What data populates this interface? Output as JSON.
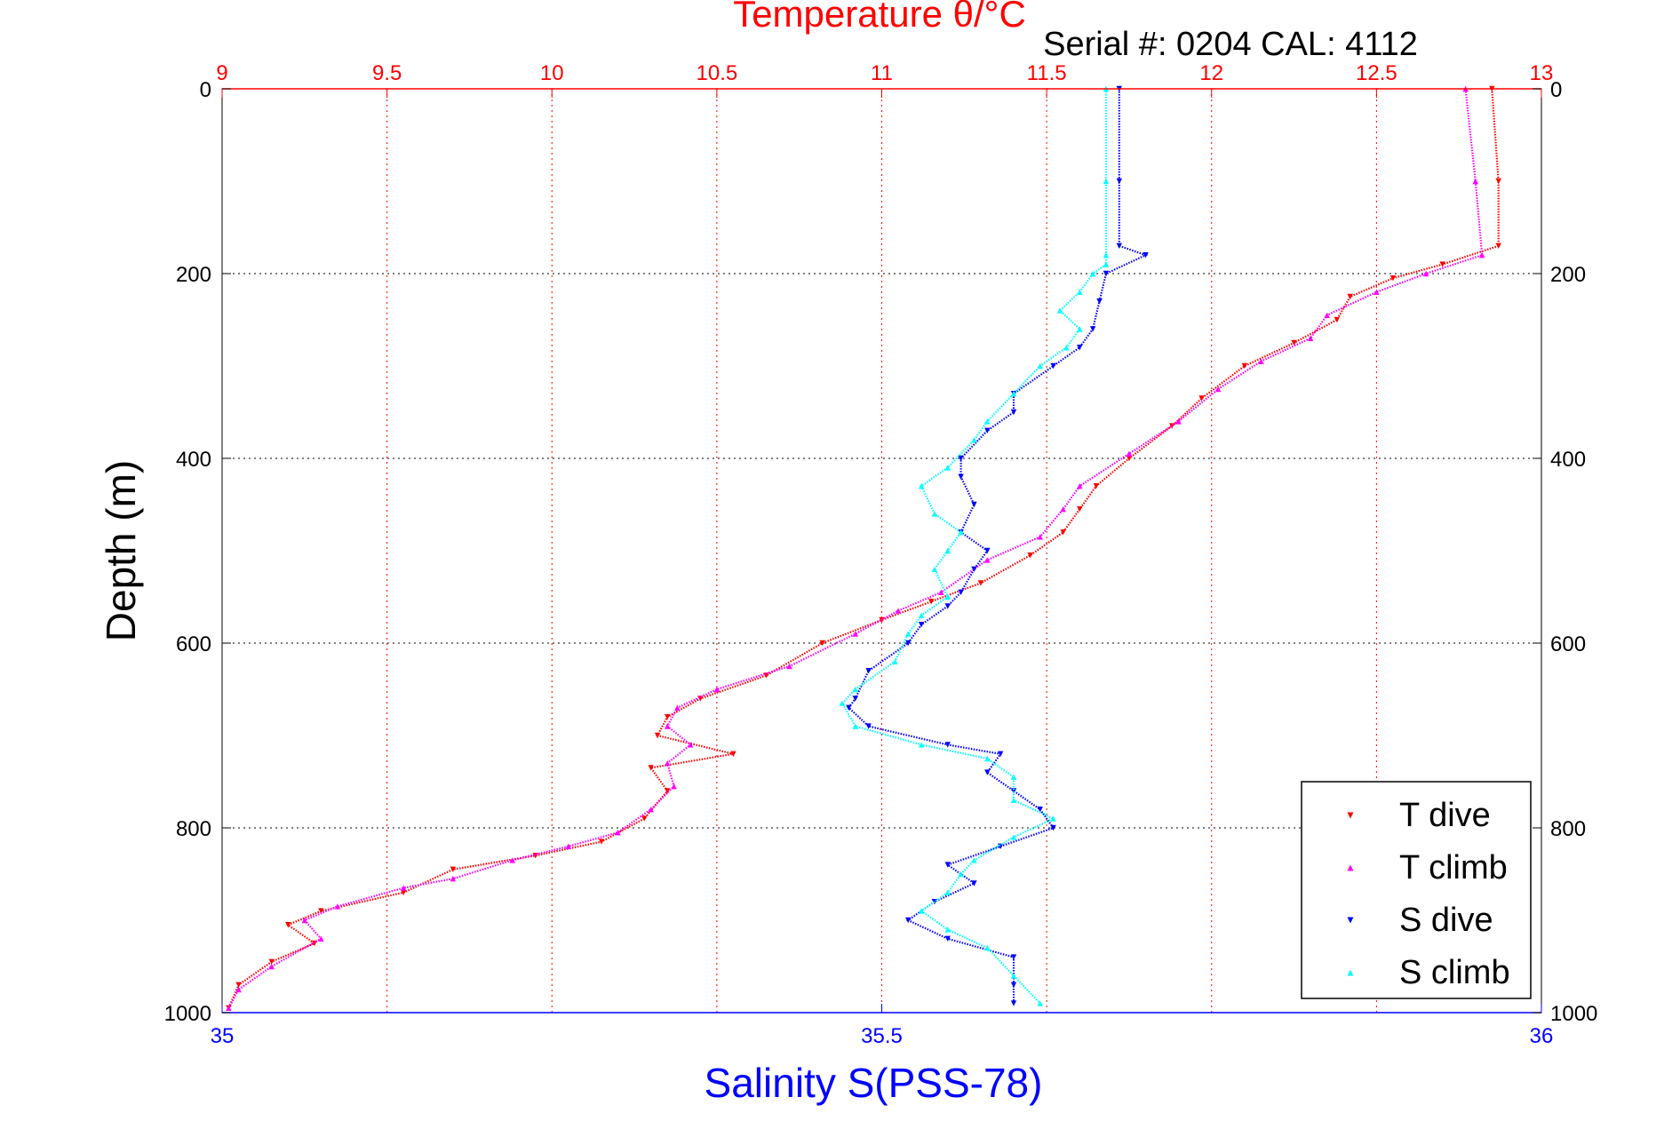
{
  "chart_data": {
    "type": "scatter",
    "title": "Temperature θ/°C",
    "subtitle": "Serial #: 0204  CAL: 4112",
    "ylabel": "Depth (m)",
    "xlabel_bottom": "Salinity S(PSS-78)",
    "ylim": [
      0,
      1000
    ],
    "y_reversed": true,
    "y_ticks": [
      0,
      200,
      400,
      600,
      800,
      1000
    ],
    "x_top": {
      "label": "Temperature θ/°C",
      "range": [
        9,
        13
      ],
      "ticks": [
        9,
        9.5,
        10,
        10.5,
        11,
        11.5,
        12,
        12.5,
        13
      ],
      "tick_labels": [
        "9",
        "9.5",
        "10",
        "10.5",
        "11",
        "11.5",
        "12",
        "12.5",
        "13"
      ]
    },
    "x_bottom": {
      "label": "Salinity S(PSS-78)",
      "range": [
        35,
        36
      ],
      "ticks": [
        35,
        35.5,
        36
      ],
      "tick_labels": [
        "35",
        "35.5",
        "36"
      ]
    },
    "grid": true,
    "legend_position": "bottom-right",
    "colors": {
      "top_axis": "#ff0000",
      "bottom_axis": "#0000ff",
      "grid": "#ff0000",
      "grid_horizontal": "#000000"
    },
    "series": [
      {
        "name": "T dive",
        "axis": "top",
        "color": "#ff0000",
        "marker": "triangle-down",
        "points": [
          [
            12.85,
            0
          ],
          [
            12.87,
            100
          ],
          [
            12.87,
            170
          ],
          [
            12.7,
            190
          ],
          [
            12.55,
            205
          ],
          [
            12.42,
            225
          ],
          [
            12.38,
            250
          ],
          [
            12.25,
            275
          ],
          [
            12.1,
            300
          ],
          [
            11.97,
            335
          ],
          [
            11.88,
            365
          ],
          [
            11.75,
            400
          ],
          [
            11.65,
            430
          ],
          [
            11.6,
            455
          ],
          [
            11.55,
            480
          ],
          [
            11.45,
            505
          ],
          [
            11.3,
            535
          ],
          [
            11.15,
            555
          ],
          [
            11,
            575
          ],
          [
            10.82,
            600
          ],
          [
            10.65,
            635
          ],
          [
            10.45,
            660
          ],
          [
            10.35,
            680
          ],
          [
            10.32,
            700
          ],
          [
            10.55,
            720
          ],
          [
            10.3,
            735
          ],
          [
            10.35,
            760
          ],
          [
            10.28,
            790
          ],
          [
            10.15,
            815
          ],
          [
            9.95,
            830
          ],
          [
            9.7,
            845
          ],
          [
            9.55,
            870
          ],
          [
            9.3,
            890
          ],
          [
            9.2,
            905
          ],
          [
            9.28,
            925
          ],
          [
            9.15,
            945
          ],
          [
            9.05,
            970
          ],
          [
            9.02,
            995
          ]
        ]
      },
      {
        "name": "T climb",
        "axis": "top",
        "color": "#ff00ff",
        "marker": "triangle-up",
        "points": [
          [
            12.77,
            0
          ],
          [
            12.8,
            100
          ],
          [
            12.82,
            180
          ],
          [
            12.65,
            200
          ],
          [
            12.5,
            220
          ],
          [
            12.35,
            245
          ],
          [
            12.3,
            270
          ],
          [
            12.15,
            295
          ],
          [
            12.02,
            325
          ],
          [
            11.9,
            360
          ],
          [
            11.75,
            395
          ],
          [
            11.6,
            430
          ],
          [
            11.55,
            455
          ],
          [
            11.48,
            485
          ],
          [
            11.32,
            510
          ],
          [
            11.18,
            545
          ],
          [
            11.05,
            565
          ],
          [
            10.92,
            590
          ],
          [
            10.72,
            625
          ],
          [
            10.5,
            650
          ],
          [
            10.38,
            670
          ],
          [
            10.35,
            690
          ],
          [
            10.42,
            710
          ],
          [
            10.35,
            730
          ],
          [
            10.37,
            755
          ],
          [
            10.3,
            780
          ],
          [
            10.2,
            805
          ],
          [
            10.05,
            820
          ],
          [
            9.88,
            835
          ],
          [
            9.7,
            855
          ],
          [
            9.55,
            865
          ],
          [
            9.35,
            885
          ],
          [
            9.25,
            900
          ],
          [
            9.3,
            920
          ],
          [
            9.15,
            950
          ],
          [
            9.05,
            975
          ],
          [
            9.02,
            995
          ]
        ]
      },
      {
        "name": "S dive",
        "axis": "bottom",
        "color": "#0000ff",
        "marker": "triangle-down",
        "points": [
          [
            35.68,
            0
          ],
          [
            35.68,
            100
          ],
          [
            35.68,
            170
          ],
          [
            35.7,
            180
          ],
          [
            35.67,
            200
          ],
          [
            35.665,
            230
          ],
          [
            35.66,
            260
          ],
          [
            35.65,
            280
          ],
          [
            35.63,
            300
          ],
          [
            35.6,
            330
          ],
          [
            35.6,
            350
          ],
          [
            35.58,
            370
          ],
          [
            35.56,
            400
          ],
          [
            35.56,
            420
          ],
          [
            35.57,
            450
          ],
          [
            35.56,
            480
          ],
          [
            35.58,
            500
          ],
          [
            35.57,
            520
          ],
          [
            35.56,
            545
          ],
          [
            35.55,
            560
          ],
          [
            35.53,
            580
          ],
          [
            35.52,
            600
          ],
          [
            35.49,
            630
          ],
          [
            35.48,
            660
          ],
          [
            35.475,
            670
          ],
          [
            35.49,
            690
          ],
          [
            35.55,
            710
          ],
          [
            35.59,
            720
          ],
          [
            35.58,
            740
          ],
          [
            35.6,
            760
          ],
          [
            35.62,
            780
          ],
          [
            35.63,
            800
          ],
          [
            35.59,
            820
          ],
          [
            35.55,
            840
          ],
          [
            35.57,
            860
          ],
          [
            35.54,
            880
          ],
          [
            35.52,
            900
          ],
          [
            35.55,
            920
          ],
          [
            35.6,
            940
          ],
          [
            35.6,
            970
          ],
          [
            35.6,
            990
          ]
        ]
      },
      {
        "name": "S climb",
        "axis": "bottom",
        "color": "#00ffff",
        "marker": "triangle-up",
        "points": [
          [
            35.67,
            0
          ],
          [
            35.67,
            100
          ],
          [
            35.67,
            180
          ],
          [
            35.67,
            190
          ],
          [
            35.66,
            200
          ],
          [
            35.65,
            220
          ],
          [
            35.635,
            240
          ],
          [
            35.65,
            260
          ],
          [
            35.64,
            280
          ],
          [
            35.62,
            300
          ],
          [
            35.6,
            330
          ],
          [
            35.58,
            360
          ],
          [
            35.57,
            380
          ],
          [
            35.55,
            410
          ],
          [
            35.53,
            430
          ],
          [
            35.54,
            460
          ],
          [
            35.56,
            480
          ],
          [
            35.55,
            500
          ],
          [
            35.54,
            520
          ],
          [
            35.55,
            550
          ],
          [
            35.53,
            570
          ],
          [
            35.52,
            590
          ],
          [
            35.51,
            620
          ],
          [
            35.48,
            650
          ],
          [
            35.47,
            665
          ],
          [
            35.48,
            690
          ],
          [
            35.53,
            710
          ],
          [
            35.58,
            725
          ],
          [
            35.6,
            745
          ],
          [
            35.6,
            770
          ],
          [
            35.63,
            790
          ],
          [
            35.6,
            810
          ],
          [
            35.57,
            835
          ],
          [
            35.56,
            850
          ],
          [
            35.55,
            870
          ],
          [
            35.53,
            890
          ],
          [
            35.55,
            910
          ],
          [
            35.58,
            930
          ],
          [
            35.6,
            960
          ],
          [
            35.62,
            990
          ]
        ]
      }
    ]
  }
}
